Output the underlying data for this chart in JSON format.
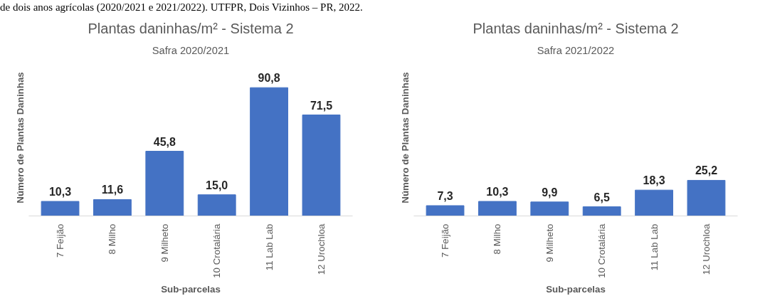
{
  "chart_data": [
    {
      "type": "bar",
      "title": "Plantas daninhas/m² - Sistema 2",
      "subtitle": "Safra 2020/2021",
      "xlabel": "Sub-parcelas",
      "ylabel": "Número de Plantas Daninhas",
      "annotations": [
        "de dois anos agrícolas (2020/2021 e 2021/2022). UTFPR, Dois Vizinhos – PR, 2022."
      ],
      "categories": [
        "7 Feijão",
        "8 Milho",
        "9 Milheto",
        "10 Crotalária",
        "11 Lab Lab",
        "12 Urochloa"
      ],
      "values": [
        10.3,
        11.6,
        45.8,
        15.0,
        90.8,
        71.5
      ],
      "value_labels": [
        "10,3",
        "11,6",
        "45,8",
        "15,0",
        "90,8",
        "71,5"
      ],
      "color": "#4472c4",
      "grid": false
    },
    {
      "type": "bar",
      "title": "Plantas daninhas/m² - Sistema 2",
      "subtitle": "Safra 2021/2022",
      "xlabel": "Sub-parcelas",
      "ylabel": "Número de Plantas Daninhas",
      "categories": [
        "7 Feijão",
        "8 Milho",
        "9 Milheto",
        "10 Crotalária",
        "11 Lab Lab",
        "12 Urochloa"
      ],
      "values": [
        7.3,
        10.3,
        9.9,
        6.5,
        18.3,
        25.2
      ],
      "value_labels": [
        "7,3",
        "10,3",
        "9,9",
        "6,5",
        "18,3",
        "25,2"
      ],
      "color": "#4472c4",
      "grid": false
    }
  ]
}
